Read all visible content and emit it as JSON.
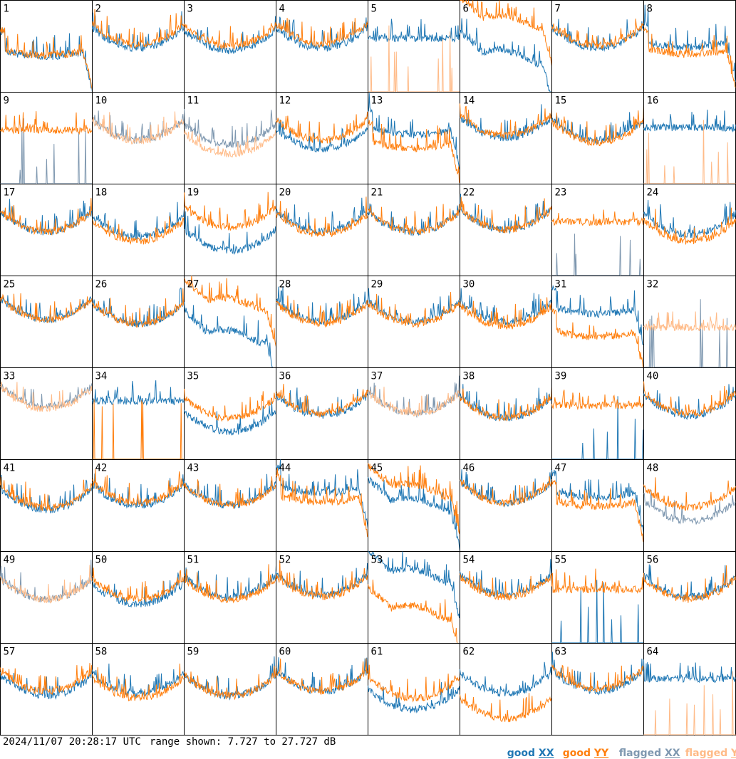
{
  "footer": {
    "timestamp": "2024/11/07 20:28:17 UTC",
    "range_text": "range shown: 7.727 to 27.727 dB"
  },
  "legend": [
    {
      "word": "good",
      "pol": "XX",
      "color": "#1f77b4"
    },
    {
      "word": "good",
      "pol": "YY",
      "color": "#ff7f0e"
    },
    {
      "word": "flagged",
      "pol": "XX",
      "color": "#7f98b0"
    },
    {
      "word": "flagged",
      "pol": "YY",
      "color": "#ffbb88"
    }
  ],
  "chart_data": {
    "type": "line",
    "ylim": [
      7.727,
      27.727
    ],
    "units": "dB",
    "series_names": [
      "good XX",
      "good YY",
      "flagged XX",
      "flagged YY"
    ],
    "panels": [
      {
        "label": "1",
        "xx": "good",
        "yy": "good",
        "shape": "dropend",
        "xx_level": 15.5,
        "yy_level": 15.8
      },
      {
        "label": "2",
        "xx": "good",
        "yy": "good",
        "shape": "bowl",
        "xx_level": 18.5,
        "yy_level": 19.3
      },
      {
        "label": "3",
        "xx": "good",
        "yy": "good",
        "shape": "bowl",
        "xx_level": 18.0,
        "yy_level": 19.0
      },
      {
        "label": "4",
        "xx": "good",
        "yy": "good",
        "shape": "bowl",
        "xx_level": 18.5,
        "yy_level": 19.5
      },
      {
        "label": "5",
        "xx": "good",
        "yy": "flagged",
        "shape": "sparse",
        "xx_level": 19.5,
        "yy_level": 7.8
      },
      {
        "label": "6",
        "xx": "good",
        "yy": "good",
        "shape": "hump",
        "xx_level": 14.0,
        "yy_level": 21.5
      },
      {
        "label": "7",
        "xx": "good",
        "yy": "good",
        "shape": "bowl",
        "xx_level": 18.5,
        "yy_level": 19.0
      },
      {
        "label": "8",
        "xx": "good",
        "yy": "good",
        "shape": "dropend",
        "xx_level": 17.5,
        "yy_level": 16.0
      },
      {
        "label": "9",
        "xx": "flagged",
        "yy": "good",
        "shape": "sparse",
        "xx_level": 7.9,
        "yy_level": 19.5
      },
      {
        "label": "10",
        "xx": "flagged",
        "yy": "flagged",
        "shape": "bowl",
        "xx_level": 18.5,
        "yy_level": 18.3
      },
      {
        "label": "11",
        "xx": "flagged",
        "yy": "flagged",
        "shape": "bowl",
        "xx_level": 17.5,
        "yy_level": 15.5
      },
      {
        "label": "12",
        "xx": "good",
        "yy": "good",
        "shape": "bowl",
        "xx_level": 16.5,
        "yy_level": 18.5
      },
      {
        "label": "13",
        "xx": "good",
        "yy": "good",
        "shape": "dropend",
        "xx_level": 18.5,
        "yy_level": 15.5
      },
      {
        "label": "14",
        "xx": "good",
        "yy": "good",
        "shape": "bowl",
        "xx_level": 19.0,
        "yy_level": 19.5
      },
      {
        "label": "15",
        "xx": "good",
        "yy": "good",
        "shape": "bowl",
        "xx_level": 18.5,
        "yy_level": 18.0
      },
      {
        "label": "16",
        "xx": "good",
        "yy": "flagged",
        "shape": "sparse",
        "xx_level": 20.0,
        "yy_level": 7.8
      },
      {
        "label": "17",
        "xx": "good",
        "yy": "good",
        "shape": "bowl",
        "xx_level": 18.5,
        "yy_level": 18.5
      },
      {
        "label": "18",
        "xx": "good",
        "yy": "good",
        "shape": "bowl",
        "xx_level": 17.5,
        "yy_level": 16.5
      },
      {
        "label": "19",
        "xx": "good",
        "yy": "good",
        "shape": "bowl",
        "xx_level": 14.5,
        "yy_level": 19.5
      },
      {
        "label": "20",
        "xx": "good",
        "yy": "good",
        "shape": "bowl",
        "xx_level": 18.5,
        "yy_level": 18.0
      },
      {
        "label": "21",
        "xx": "good",
        "yy": "good",
        "shape": "bowl",
        "xx_level": 18.5,
        "yy_level": 18.5
      },
      {
        "label": "22",
        "xx": "good",
        "yy": "good",
        "shape": "bowl",
        "xx_level": 19.0,
        "yy_level": 19.0
      },
      {
        "label": "23",
        "xx": "flagged",
        "yy": "good",
        "shape": "sparse",
        "xx_level": 8.5,
        "yy_level": 19.5
      },
      {
        "label": "24",
        "xx": "good",
        "yy": "good",
        "shape": "bowl",
        "xx_level": 18.0,
        "yy_level": 16.5
      },
      {
        "label": "25",
        "xx": "good",
        "yy": "good",
        "shape": "bowl",
        "xx_level": 19.5,
        "yy_level": 19.5
      },
      {
        "label": "26",
        "xx": "good",
        "yy": "good",
        "shape": "bowl",
        "xx_level": 18.5,
        "yy_level": 18.5
      },
      {
        "label": "27",
        "xx": "good",
        "yy": "good",
        "shape": "hump",
        "xx_level": 13.0,
        "yy_level": 20.0
      },
      {
        "label": "28",
        "xx": "good",
        "yy": "good",
        "shape": "bowl",
        "xx_level": 19.0,
        "yy_level": 18.5
      },
      {
        "label": "29",
        "xx": "good",
        "yy": "good",
        "shape": "bowl",
        "xx_level": 19.0,
        "yy_level": 18.5
      },
      {
        "label": "30",
        "xx": "good",
        "yy": "good",
        "shape": "bowl",
        "xx_level": 19.0,
        "yy_level": 18.0
      },
      {
        "label": "31",
        "xx": "good",
        "yy": "good",
        "shape": "dropend",
        "xx_level": 19.5,
        "yy_level": 14.5
      },
      {
        "label": "32",
        "xx": "flagged",
        "yy": "flagged",
        "shape": "sparse",
        "xx_level": 7.8,
        "yy_level": 16.5
      },
      {
        "label": "33",
        "xx": "flagged",
        "yy": "flagged",
        "shape": "bowl",
        "xx_level": 20.5,
        "yy_level": 20.0
      },
      {
        "label": "34",
        "xx": "good",
        "yy": "good",
        "shape": "sparse",
        "xx_level": 20.5,
        "yy_level": 7.8
      },
      {
        "label": "35",
        "xx": "good",
        "yy": "good",
        "shape": "bowl",
        "xx_level": 15.0,
        "yy_level": 18.0
      },
      {
        "label": "36",
        "xx": "good",
        "yy": "good",
        "shape": "bowl",
        "xx_level": 18.5,
        "yy_level": 19.0
      },
      {
        "label": "37",
        "xx": "flagged",
        "yy": "flagged",
        "shape": "bowl",
        "xx_level": 19.0,
        "yy_level": 19.0
      },
      {
        "label": "38",
        "xx": "good",
        "yy": "good",
        "shape": "bowl",
        "xx_level": 18.0,
        "yy_level": 18.0
      },
      {
        "label": "39",
        "xx": "good",
        "yy": "good",
        "shape": "sparse",
        "xx_level": 7.9,
        "yy_level": 19.5
      },
      {
        "label": "40",
        "xx": "good",
        "yy": "good",
        "shape": "bowl",
        "xx_level": 18.5,
        "yy_level": 19.0
      },
      {
        "label": "41",
        "xx": "good",
        "yy": "good",
        "shape": "bowl",
        "xx_level": 18.0,
        "yy_level": 18.5
      },
      {
        "label": "42",
        "xx": "good",
        "yy": "good",
        "shape": "bowl",
        "xx_level": 19.0,
        "yy_level": 19.5
      },
      {
        "label": "43",
        "xx": "good",
        "yy": "good",
        "shape": "bowl",
        "xx_level": 19.0,
        "yy_level": 19.0
      },
      {
        "label": "44",
        "xx": "good",
        "yy": "good",
        "shape": "dropend",
        "xx_level": 20.5,
        "yy_level": 18.5
      },
      {
        "label": "45",
        "xx": "good",
        "yy": "good",
        "shape": "hump",
        "xx_level": 16.5,
        "yy_level": 19.5
      },
      {
        "label": "46",
        "xx": "good",
        "yy": "good",
        "shape": "bowl",
        "xx_level": 19.5,
        "yy_level": 19.5
      },
      {
        "label": "47",
        "xx": "good",
        "yy": "good",
        "shape": "dropend",
        "xx_level": 19.5,
        "yy_level": 17.5
      },
      {
        "label": "48",
        "xx": "flagged",
        "yy": "good",
        "shape": "bowl",
        "xx_level": 15.5,
        "yy_level": 18.5
      },
      {
        "label": "49",
        "xx": "flagged",
        "yy": "flagged",
        "shape": "bowl",
        "xx_level": 18.5,
        "yy_level": 18.5
      },
      {
        "label": "50",
        "xx": "good",
        "yy": "good",
        "shape": "bowl",
        "xx_level": 17.5,
        "yy_level": 18.5
      },
      {
        "label": "51",
        "xx": "good",
        "yy": "good",
        "shape": "bowl",
        "xx_level": 19.0,
        "yy_level": 18.5
      },
      {
        "label": "52",
        "xx": "good",
        "yy": "good",
        "shape": "bowl",
        "xx_level": 19.5,
        "yy_level": 19.0
      },
      {
        "label": "53",
        "xx": "good",
        "yy": "good",
        "shape": "hump",
        "xx_level": 21.0,
        "yy_level": 13.0
      },
      {
        "label": "54",
        "xx": "good",
        "yy": "good",
        "shape": "bowl",
        "xx_level": 19.5,
        "yy_level": 19.0
      },
      {
        "label": "55",
        "xx": "good",
        "yy": "good",
        "shape": "sparse",
        "xx_level": 8.8,
        "yy_level": 19.5
      },
      {
        "label": "56",
        "xx": "good",
        "yy": "good",
        "shape": "bowl",
        "xx_level": 19.0,
        "yy_level": 18.5
      },
      {
        "label": "57",
        "xx": "good",
        "yy": "good",
        "shape": "bowl",
        "xx_level": 17.5,
        "yy_level": 18.5
      },
      {
        "label": "58",
        "xx": "good",
        "yy": "good",
        "shape": "bowl",
        "xx_level": 18.0,
        "yy_level": 17.0
      },
      {
        "label": "59",
        "xx": "good",
        "yy": "good",
        "shape": "bowl",
        "xx_level": 17.5,
        "yy_level": 17.5
      },
      {
        "label": "60",
        "xx": "good",
        "yy": "good",
        "shape": "bowl",
        "xx_level": 18.5,
        "yy_level": 18.5
      },
      {
        "label": "61",
        "xx": "good",
        "yy": "good",
        "shape": "bowl",
        "xx_level": 14.5,
        "yy_level": 17.0
      },
      {
        "label": "62",
        "xx": "good",
        "yy": "good",
        "shape": "bowl",
        "xx_level": 18.0,
        "yy_level": 12.5
      },
      {
        "label": "63",
        "xx": "good",
        "yy": "good",
        "shape": "bowl",
        "xx_level": 18.5,
        "yy_level": 19.0
      },
      {
        "label": "64",
        "xx": "good",
        "yy": "flagged",
        "shape": "sparse",
        "xx_level": 20.0,
        "yy_level": 7.8
      }
    ]
  }
}
